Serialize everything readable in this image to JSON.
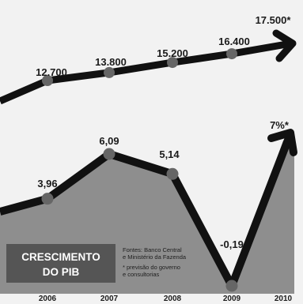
{
  "chart_data": [
    {
      "type": "line",
      "x": [
        "2006",
        "2007",
        "2008",
        "2009",
        "2010"
      ],
      "values": [
        12700,
        13800,
        15200,
        16400,
        17500
      ],
      "value_labels": [
        "12.700",
        "13.800",
        "15.200",
        "16.400",
        "17.500*"
      ],
      "last_is_forecast": true
    },
    {
      "type": "area",
      "title_lines": [
        "CRESCIMENTO",
        "DO PIB"
      ],
      "x": [
        "2006",
        "2007",
        "2008",
        "2009",
        "2010"
      ],
      "values": [
        3.96,
        6.09,
        5.14,
        -0.19,
        7.0
      ],
      "value_labels": [
        "3,96",
        "6,09",
        "5,14",
        "-0,19",
        "7%*"
      ],
      "last_is_forecast": true
    }
  ],
  "notes": {
    "sources": [
      "Fontes: Banco Central",
      "e Ministério da Fazenda"
    ],
    "forecast": [
      "* previsão do governo",
      "e consultorias"
    ]
  },
  "colors": {
    "line": "#111111",
    "marker": "#666666",
    "area": "#8e8e8e",
    "title_box": "#555555",
    "background": "#f2f2f2"
  }
}
